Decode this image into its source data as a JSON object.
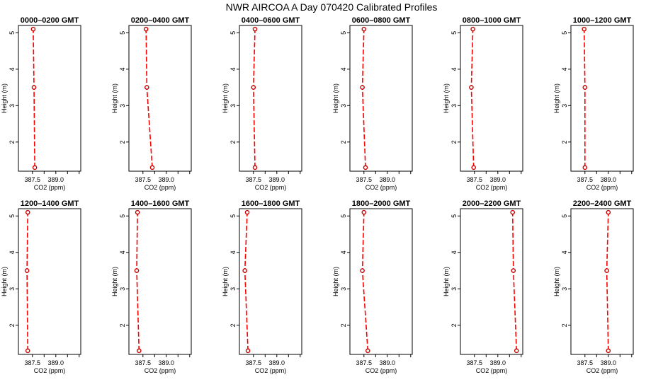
{
  "figure": {
    "title": "NWR AIRCOA A  Day 070420  Calibrated Profiles"
  },
  "chart_data": [
    {
      "type": "line",
      "title": "0000–0200 GMT",
      "xlabel": "CO2 (ppm)",
      "ylabel": "Height (m)",
      "xlim": [
        386.6,
        390.6
      ],
      "ylim": [
        1.2,
        5.2
      ],
      "xticks": [
        387.5,
        389.0
      ],
      "yticks": [
        2,
        3,
        4,
        5
      ],
      "series": [
        {
          "points": [
            [
              387.65,
              1.3
            ],
            [
              387.6,
              3.5
            ],
            [
              387.55,
              5.1
            ]
          ]
        }
      ]
    },
    {
      "type": "line",
      "title": "0200–0400 GMT",
      "xlabel": "CO2 (ppm)",
      "ylabel": "Height (m)",
      "xlim": [
        386.6,
        390.6
      ],
      "ylim": [
        1.2,
        5.2
      ],
      "xticks": [
        387.5,
        389.0
      ],
      "yticks": [
        2,
        3,
        4,
        5
      ],
      "series": [
        {
          "points": [
            [
              388.1,
              1.3
            ],
            [
              387.75,
              3.5
            ],
            [
              387.7,
              5.1
            ]
          ]
        }
      ]
    },
    {
      "type": "line",
      "title": "0400–0600 GMT",
      "xlabel": "CO2 (ppm)",
      "ylabel": "Height (m)",
      "xlim": [
        386.6,
        390.6
      ],
      "ylim": [
        1.2,
        5.2
      ],
      "xticks": [
        387.5,
        389.0
      ],
      "yticks": [
        2,
        3,
        4,
        5
      ],
      "series": [
        {
          "points": [
            [
              387.6,
              1.3
            ],
            [
              387.5,
              3.5
            ],
            [
              387.6,
              5.1
            ]
          ]
        }
      ]
    },
    {
      "type": "line",
      "title": "0600–0800 GMT",
      "xlabel": "CO2 (ppm)",
      "ylabel": "Height (m)",
      "xlim": [
        386.6,
        390.6
      ],
      "ylim": [
        1.2,
        5.2
      ],
      "xticks": [
        387.5,
        389.0
      ],
      "yticks": [
        2,
        3,
        4,
        5
      ],
      "series": [
        {
          "points": [
            [
              387.6,
              1.3
            ],
            [
              387.4,
              3.5
            ],
            [
              387.5,
              5.1
            ]
          ]
        }
      ]
    },
    {
      "type": "line",
      "title": "0800–1000 GMT",
      "xlabel": "CO2 (ppm)",
      "ylabel": "Height (m)",
      "xlim": [
        386.6,
        390.6
      ],
      "ylim": [
        1.2,
        5.2
      ],
      "xticks": [
        387.5,
        389.0
      ],
      "yticks": [
        2,
        3,
        4,
        5
      ],
      "series": [
        {
          "points": [
            [
              387.45,
              1.3
            ],
            [
              387.3,
              3.5
            ],
            [
              387.4,
              5.1
            ]
          ]
        }
      ]
    },
    {
      "type": "line",
      "title": "1000–1200 GMT",
      "xlabel": "CO2 (ppm)",
      "ylabel": "Height (m)",
      "xlim": [
        386.6,
        390.6
      ],
      "ylim": [
        1.2,
        5.2
      ],
      "xticks": [
        387.5,
        389.0
      ],
      "yticks": [
        2,
        3,
        4,
        5
      ],
      "series": [
        {
          "points": [
            [
              387.5,
              1.3
            ],
            [
              387.5,
              3.5
            ],
            [
              387.45,
              5.1
            ]
          ]
        }
      ]
    },
    {
      "type": "line",
      "title": "1200–1400 GMT",
      "xlabel": "CO2 (ppm)",
      "ylabel": "Height (m)",
      "xlim": [
        386.6,
        390.6
      ],
      "ylim": [
        1.2,
        5.2
      ],
      "xticks": [
        387.5,
        389.0
      ],
      "yticks": [
        2,
        3,
        4,
        5
      ],
      "series": [
        {
          "points": [
            [
              387.2,
              1.3
            ],
            [
              387.15,
              3.5
            ],
            [
              387.2,
              5.1
            ]
          ]
        }
      ]
    },
    {
      "type": "line",
      "title": "1400–1600 GMT",
      "xlabel": "CO2 (ppm)",
      "ylabel": "Height (m)",
      "xlim": [
        386.6,
        390.6
      ],
      "ylim": [
        1.2,
        5.2
      ],
      "xticks": [
        387.5,
        389.0
      ],
      "yticks": [
        2,
        3,
        4,
        5
      ],
      "series": [
        {
          "points": [
            [
              387.25,
              1.3
            ],
            [
              387.1,
              3.5
            ],
            [
              387.15,
              5.1
            ]
          ]
        }
      ]
    },
    {
      "type": "line",
      "title": "1600–1800 GMT",
      "xlabel": "CO2 (ppm)",
      "ylabel": "Height (m)",
      "xlim": [
        386.6,
        390.6
      ],
      "ylim": [
        1.2,
        5.2
      ],
      "xticks": [
        387.5,
        389.0
      ],
      "yticks": [
        2,
        3,
        4,
        5
      ],
      "series": [
        {
          "points": [
            [
              387.15,
              1.3
            ],
            [
              386.95,
              3.5
            ],
            [
              387.1,
              5.1
            ]
          ]
        }
      ]
    },
    {
      "type": "line",
      "title": "1800–2000 GMT",
      "xlabel": "CO2 (ppm)",
      "ylabel": "Height (m)",
      "xlim": [
        386.6,
        390.6
      ],
      "ylim": [
        1.2,
        5.2
      ],
      "xticks": [
        387.5,
        389.0
      ],
      "yticks": [
        2,
        3,
        4,
        5
      ],
      "series": [
        {
          "points": [
            [
              387.75,
              1.3
            ],
            [
              387.4,
              3.5
            ],
            [
              387.5,
              5.1
            ]
          ]
        }
      ]
    },
    {
      "type": "line",
      "title": "2000–2200 GMT",
      "xlabel": "CO2 (ppm)",
      "ylabel": "Height (m)",
      "xlim": [
        386.6,
        390.6
      ],
      "ylim": [
        1.2,
        5.2
      ],
      "xticks": [
        387.5,
        389.0
      ],
      "yticks": [
        2,
        3,
        4,
        5
      ],
      "series": [
        {
          "points": [
            [
              390.2,
              1.3
            ],
            [
              390.0,
              3.5
            ],
            [
              389.95,
              5.1
            ]
          ]
        }
      ]
    },
    {
      "type": "line",
      "title": "2200–2400 GMT",
      "xlabel": "CO2 (ppm)",
      "ylabel": "Height (m)",
      "xlim": [
        386.6,
        390.6
      ],
      "ylim": [
        1.2,
        5.2
      ],
      "xticks": [
        387.5,
        389.0
      ],
      "yticks": [
        2,
        3,
        4,
        5
      ],
      "series": [
        {
          "points": [
            [
              389.0,
              1.3
            ],
            [
              388.9,
              3.5
            ],
            [
              389.0,
              5.1
            ]
          ]
        }
      ]
    }
  ]
}
